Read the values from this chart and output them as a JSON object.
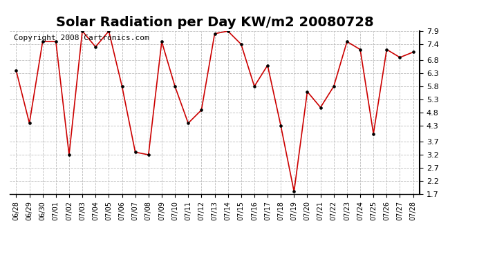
{
  "title": "Solar Radiation per Day KW/m2 20080728",
  "copyright_text": "Copyright 2008 Cartronics.com",
  "dates": [
    "06/28",
    "06/29",
    "06/30",
    "07/01",
    "07/02",
    "07/03",
    "07/04",
    "07/05",
    "07/06",
    "07/07",
    "07/08",
    "07/09",
    "07/10",
    "07/11",
    "07/12",
    "07/13",
    "07/14",
    "07/15",
    "07/16",
    "07/17",
    "07/18",
    "07/19",
    "07/20",
    "07/21",
    "07/22",
    "07/23",
    "07/24",
    "07/25",
    "07/26",
    "07/27",
    "07/28"
  ],
  "values": [
    6.4,
    4.4,
    7.5,
    7.5,
    3.2,
    7.9,
    7.3,
    7.9,
    5.8,
    3.3,
    3.2,
    7.5,
    5.8,
    4.4,
    4.9,
    7.8,
    7.9,
    7.4,
    5.8,
    6.6,
    4.3,
    1.8,
    5.6,
    5.0,
    5.8,
    7.5,
    7.2,
    4.0,
    7.2,
    6.9,
    7.1
  ],
  "line_color": "#cc0000",
  "marker": "o",
  "marker_size": 2.5,
  "marker_color": "#000000",
  "bg_color": "#ffffff",
  "grid_color": "#bbbbbb",
  "ylim_min": 1.7,
  "ylim_max": 7.9,
  "yticks": [
    1.7,
    2.2,
    2.7,
    3.2,
    3.7,
    4.3,
    4.8,
    5.3,
    5.8,
    6.3,
    6.8,
    7.4,
    7.9
  ],
  "title_fontsize": 14,
  "copyright_fontsize": 8,
  "tick_fontsize": 7,
  "ytick_fontsize": 8
}
